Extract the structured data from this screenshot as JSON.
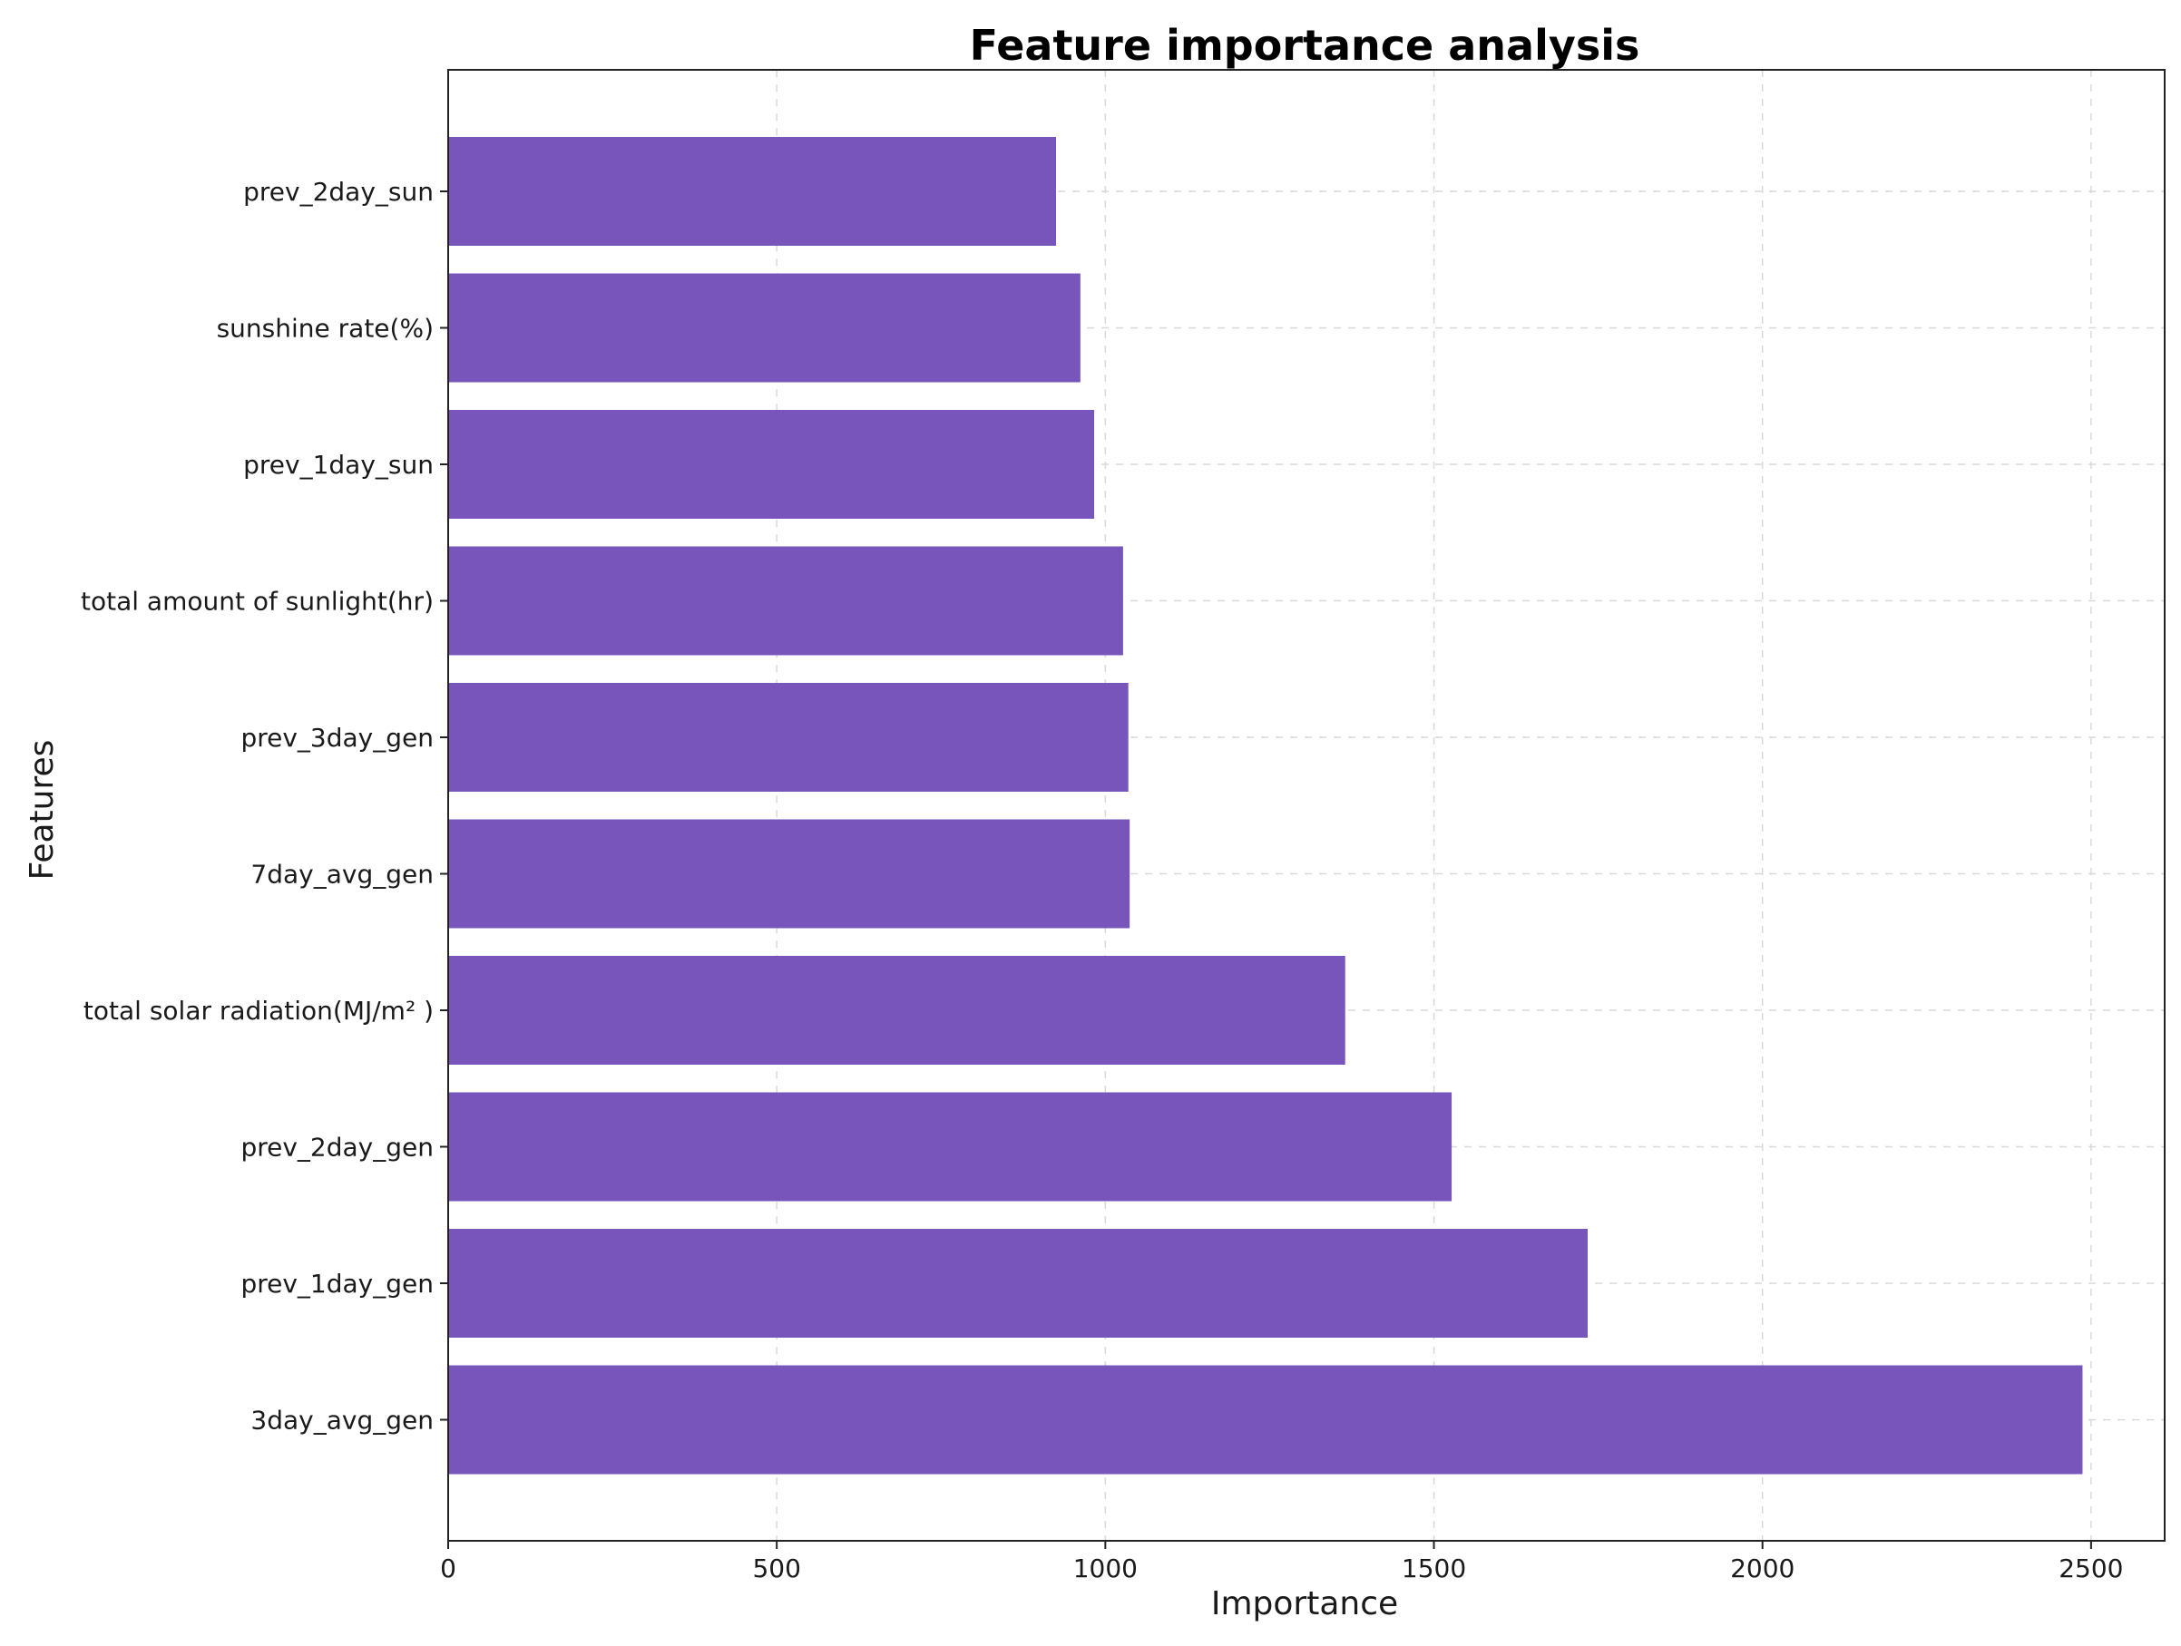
{
  "chart_data": {
    "type": "bar",
    "orientation": "horizontal",
    "title": "Feature importance analysis",
    "xlabel": "Importance",
    "ylabel": "Features",
    "categories": [
      "prev_2day_sun",
      "sunshine rate(%)",
      "prev_1day_sun",
      "total amount of sunlight(hr)",
      "prev_3day_gen",
      "7day_avg_gen",
      "total solar radiation(MJ/m² )",
      "prev_2day_gen",
      "prev_1day_gen",
      "3day_avg_gen"
    ],
    "values": [
      925,
      962,
      983,
      1027,
      1035,
      1037,
      1365,
      1527,
      1734,
      2487
    ],
    "xlim": [
      0,
      2612
    ],
    "xticks": [
      "0",
      "500",
      "1000",
      "1500",
      "2000",
      "2500"
    ],
    "grid": true,
    "bar_color": "#7755bb"
  }
}
